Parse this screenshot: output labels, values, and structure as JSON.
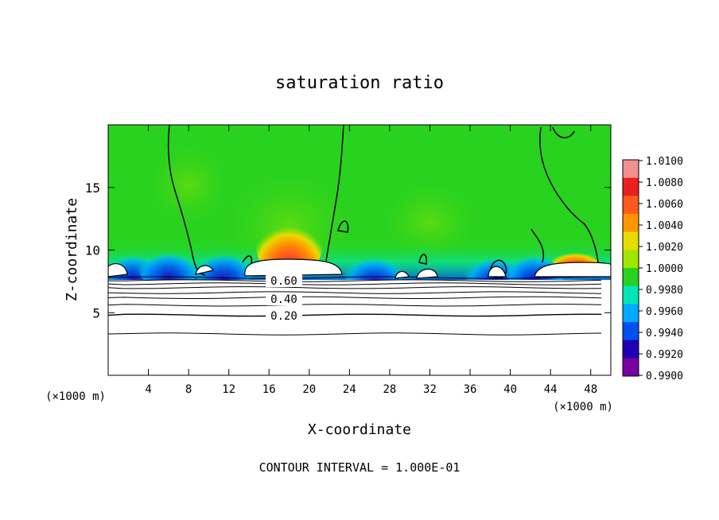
{
  "chart_data": {
    "type": "heatmap",
    "title": "saturation ratio",
    "xlabel": "X-coordinate",
    "ylabel": "Z-coordinate",
    "x_units_left": "(×1000 m)",
    "x_units_right": "(×1000 m)",
    "xlim": [
      0,
      50
    ],
    "ylim": [
      0,
      20
    ],
    "xticks": [
      4,
      8,
      12,
      16,
      20,
      24,
      28,
      32,
      36,
      40,
      44,
      48
    ],
    "xtick_labels": [
      "4",
      "8",
      "12",
      "16",
      "20",
      "24",
      "28",
      "32",
      "36",
      "40",
      "44",
      "48"
    ],
    "yticks": [
      5,
      10,
      15
    ],
    "ytick_labels": [
      "5",
      "10",
      "15"
    ],
    "colorbar": {
      "levels": [
        1.01,
        1.008,
        1.006,
        1.004,
        1.002,
        1.0,
        0.998,
        0.996,
        0.994,
        0.992,
        0.99
      ],
      "labels": [
        "1.0100",
        "1.0080",
        "1.0060",
        "1.0040",
        "1.0020",
        "1.0000",
        "0.9980",
        "0.9960",
        "0.9940",
        "0.9920",
        "0.9900"
      ],
      "colors": [
        "#f09090",
        "#e82020",
        "#ff5a1e",
        "#ff9600",
        "#e6dc00",
        "#a0e600",
        "#28d21e",
        "#00e6b4",
        "#00aaff",
        "#0050f0",
        "#1e00b4",
        "#7800a0"
      ]
    },
    "contour_labels": [
      "0.60",
      "0.40",
      "0.20"
    ],
    "contour_interval_text": "CONTOUR INTERVAL = 1.000E-01",
    "contour_lines_z": [
      3.3,
      4.8,
      5.6,
      6.2,
      6.6,
      7.0,
      7.3,
      7.55,
      7.8
    ],
    "hot_spots": [
      {
        "x": 18.0,
        "z": 10.5,
        "value": 1.008
      },
      {
        "x": 46.5,
        "z": 9.3,
        "value": 1.006
      }
    ],
    "cold_spots": [
      {
        "x": 2.5,
        "z": 8.5,
        "value": 0.993
      },
      {
        "x": 6.0,
        "z": 8.7,
        "value": 0.994
      },
      {
        "x": 11.5,
        "z": 8.6,
        "value": 0.995
      },
      {
        "x": 26.5,
        "z": 8.3,
        "value": 0.996
      },
      {
        "x": 38.5,
        "z": 8.3,
        "value": 0.995
      },
      {
        "x": 42.5,
        "z": 8.5,
        "value": 0.996
      }
    ]
  }
}
